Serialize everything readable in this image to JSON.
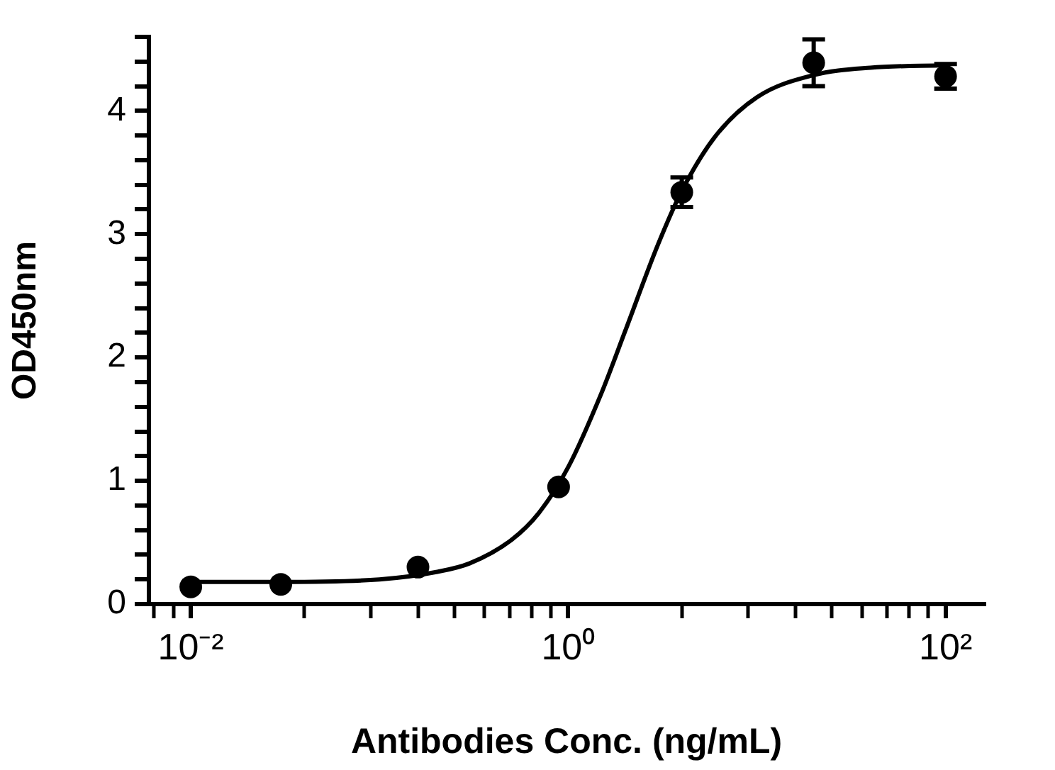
{
  "chart_data": {
    "type": "scatter",
    "xlabel": "Antibodies Conc. (ng/mL)",
    "ylabel": "OD450nm",
    "log": "x",
    "xlim": [
      0.006,
      160
    ],
    "xticks": [
      {
        "value": 0.0064,
        "label": null
      },
      {
        "value": 0.0081,
        "label": null
      },
      {
        "value": 0.01,
        "label": "10⁻²"
      },
      {
        "value": 0.04,
        "label": null
      },
      {
        "value": 0.09,
        "label": null
      },
      {
        "value": 0.16,
        "label": null
      },
      {
        "value": 0.25,
        "label": null
      },
      {
        "value": 0.36,
        "label": null
      },
      {
        "value": 0.49,
        "label": null
      },
      {
        "value": 0.64,
        "label": null
      },
      {
        "value": 0.81,
        "label": null
      },
      {
        "value": 1,
        "label": "10⁰"
      },
      {
        "value": 4,
        "label": null
      },
      {
        "value": 9,
        "label": null
      },
      {
        "value": 16,
        "label": null
      },
      {
        "value": 25,
        "label": null
      },
      {
        "value": 36,
        "label": null
      },
      {
        "value": 49,
        "label": null
      },
      {
        "value": 64,
        "label": null
      },
      {
        "value": 81,
        "label": null
      },
      {
        "value": 100,
        "label": "10²"
      }
    ],
    "ylim": [
      0,
      4.6
    ],
    "yticks": [
      0,
      {
        "value": 0.2,
        "label": null
      },
      {
        "value": 0.4,
        "label": null
      },
      {
        "value": 0.6,
        "label": null
      },
      {
        "value": 0.8,
        "label": null
      },
      1,
      {
        "value": 1.2,
        "label": null
      },
      {
        "value": 1.4,
        "label": null
      },
      {
        "value": 1.6,
        "label": null
      },
      {
        "value": 1.8,
        "label": null
      },
      2,
      {
        "value": 2.2,
        "label": null
      },
      {
        "value": 2.4,
        "label": null
      },
      {
        "value": 2.6,
        "label": null
      },
      {
        "value": 2.8,
        "label": null
      },
      3,
      {
        "value": 3.2,
        "label": null
      },
      {
        "value": 3.4,
        "label": null
      },
      {
        "value": 3.6,
        "label": null
      },
      {
        "value": 3.8,
        "label": null
      },
      4,
      {
        "value": 4.2,
        "label": null
      },
      {
        "value": 4.4,
        "label": null
      },
      {
        "value": 4.6,
        "label": null
      }
    ],
    "series": [
      {
        "color": "#000000",
        "marker": "circle",
        "x": [
          0.01,
          0.03,
          0.16,
          0.89,
          4,
          20,
          100
        ],
        "values": [
          0.14,
          0.16,
          0.3,
          0.95,
          3.34,
          4.39,
          4.28
        ],
        "errors": [
          null,
          null,
          null,
          null,
          0.12,
          0.19,
          0.1
        ]
      },
      {
        "type": "line",
        "color": "#000000",
        "marker": "none",
        "x": [
          0.01,
          0.03,
          0.1,
          0.2,
          0.3,
          0.5,
          0.7,
          1,
          1.5,
          2,
          3,
          4,
          6,
          10,
          20,
          40,
          100
        ],
        "values": [
          0.18,
          0.18,
          0.2,
          0.26,
          0.33,
          0.52,
          0.74,
          1.11,
          1.71,
          2.21,
          2.92,
          3.35,
          3.79,
          4.11,
          4.29,
          4.35,
          4.37
        ]
      }
    ]
  }
}
